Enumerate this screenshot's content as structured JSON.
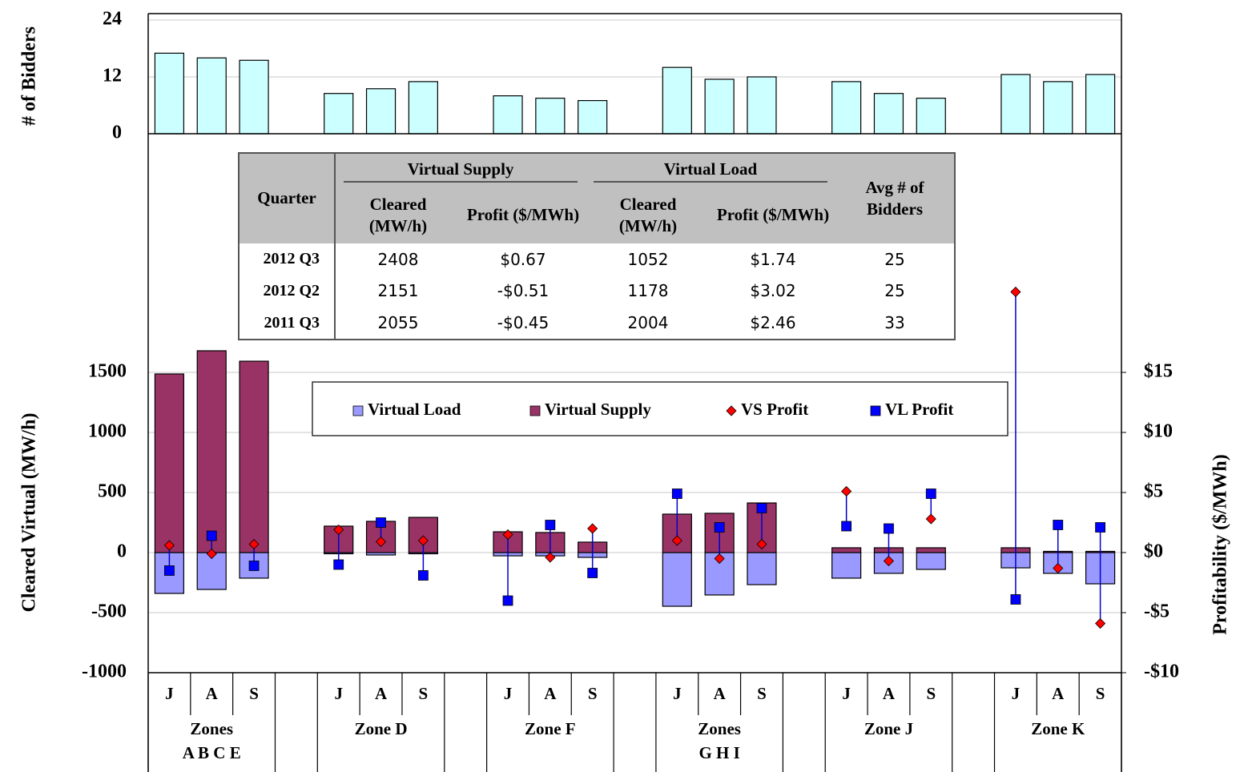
{
  "chart_data": [
    {
      "type": "bar",
      "ylabel": "# of Bidders",
      "values": [
        17,
        16,
        15.5,
        8.5,
        9.5,
        11,
        8,
        7.5,
        7,
        14,
        11.5,
        12,
        11,
        8.5,
        7.5,
        12.5,
        11,
        12.5
      ],
      "color": "#ccffff",
      "ylim": [
        0,
        24
      ],
      "yticks": [
        0,
        12,
        24
      ],
      "grid": true
    },
    {
      "type": "combo",
      "ylabel": "Cleared Virtual (MW/h)",
      "y2label": "Profitability  ($/MWh)",
      "categories": [
        "J",
        "A",
        "S",
        "J",
        "A",
        "S",
        "J",
        "A",
        "S",
        "J",
        "A",
        "S",
        "J",
        "A",
        "S",
        "J",
        "A",
        "S"
      ],
      "groups": [
        [
          "Zones",
          "A B C E"
        ],
        [
          "Zone D"
        ],
        [
          "Zone F"
        ],
        [
          "Zones",
          "G H I"
        ],
        [
          "Zone J"
        ],
        [
          "Zone K"
        ]
      ],
      "series": [
        {
          "name": "Virtual Load",
          "kind": "bar",
          "color": "#9999ff",
          "values": [
            -340,
            -307,
            -213,
            -10,
            -20,
            -10,
            -27,
            -27,
            -40,
            -447,
            -353,
            -267,
            -213,
            -173,
            -140,
            -127,
            -173,
            -260
          ]
        },
        {
          "name": "Virtual Supply",
          "kind": "bar",
          "color": "#993366",
          "values": [
            1487,
            1680,
            1593,
            220,
            260,
            293,
            173,
            167,
            87,
            320,
            327,
            413,
            40,
            40,
            40,
            40,
            10,
            10
          ]
        },
        {
          "name": "VS Profit",
          "kind": "marker",
          "marker": "diamond",
          "axis": "y2",
          "color": "#ff0000",
          "values": [
            0.6,
            -0.1,
            0.7,
            1.9,
            0.9,
            1.0,
            1.5,
            -0.4,
            2.0,
            1.0,
            -0.5,
            0.7,
            5.1,
            -0.7,
            2.8,
            21.7,
            -1.3,
            -5.9
          ]
        },
        {
          "name": "VL Profit",
          "kind": "marker",
          "marker": "square",
          "axis": "y2",
          "color": "#0000ff",
          "values": [
            -1.5,
            1.4,
            -1.1,
            -1.0,
            2.5,
            -1.9,
            -4.0,
            2.3,
            -1.7,
            4.9,
            2.1,
            3.7,
            2.2,
            2.0,
            4.9,
            -3.9,
            2.3,
            2.1
          ]
        }
      ],
      "ylim": [
        -1000,
        3500
      ],
      "yticks": [
        -1000,
        -500,
        0,
        500,
        1000,
        1500
      ],
      "y2lim": [
        -10,
        35
      ],
      "y2ticks": [
        {
          "value": -10,
          "label": "-$10"
        },
        {
          "value": -5,
          "label": "-$5"
        },
        {
          "value": 0,
          "label": "$0"
        },
        {
          "value": 5,
          "label": "$5"
        },
        {
          "value": 10,
          "label": "$10"
        },
        {
          "value": 15,
          "label": "$15"
        }
      ],
      "grid": true,
      "legend": "top"
    }
  ],
  "table": {
    "header": {
      "quarter": "Quarter",
      "groups": [
        "Virtual Supply",
        "Virtual Load"
      ],
      "sub": [
        "Cleared (MW/h)",
        "Profit ($/MWh)",
        "Cleared (MW/h)",
        "Profit ($/MWh)"
      ],
      "bidders": "Avg # of Bidders"
    },
    "rows": [
      [
        "2012 Q3",
        2408,
        "$0.67",
        1052,
        "$1.74",
        25
      ],
      [
        "2012 Q2",
        2151,
        "-$0.51",
        1178,
        "$3.02",
        25
      ],
      [
        "2011 Q3",
        2055,
        "-$0.45",
        2004,
        "$2.46",
        33
      ]
    ]
  }
}
